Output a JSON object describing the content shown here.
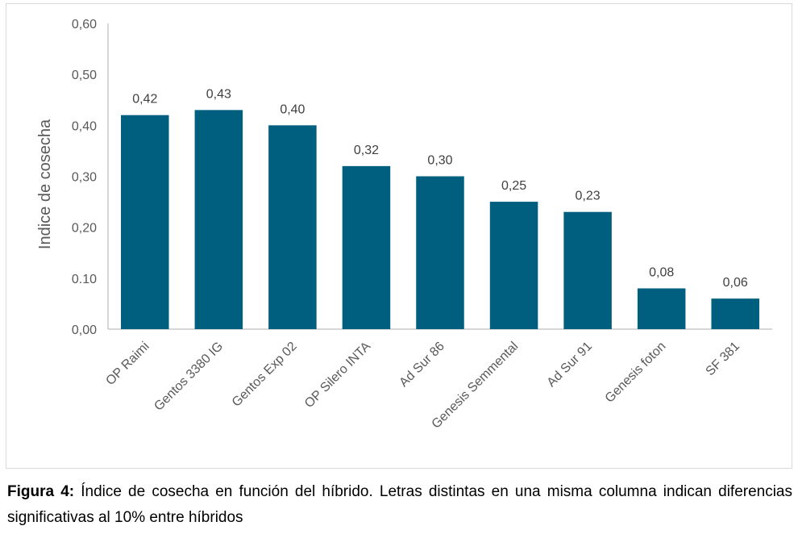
{
  "chart_data": {
    "type": "bar",
    "categories": [
      "OP Raimi",
      "Gentos 3380 IG",
      "Gentos Exp 02",
      "OP Silero INTA",
      "Ad Sur 86",
      "Genesis Semmental",
      "Ad Sur 91",
      "Genesis foton",
      "SF 381"
    ],
    "values": [
      0.42,
      0.43,
      0.4,
      0.32,
      0.3,
      0.25,
      0.23,
      0.08,
      0.06
    ],
    "data_labels": [
      "0,42",
      "0,43",
      "0,40",
      "0,32",
      "0,30",
      "0,25",
      "0,23",
      "0,08",
      "0,06"
    ],
    "y_ticks": [
      0,
      0.1,
      0.2,
      0.3,
      0.4,
      0.5,
      0.6
    ],
    "y_tick_labels": [
      "0,00",
      "0.10",
      "0,20",
      "0,30",
      "0,40",
      "0,50",
      "0,60"
    ],
    "ylim": [
      0,
      0.6
    ],
    "ylabel": "Indice de cosecha",
    "xlabel": "",
    "title": "",
    "bar_color": "#005f7f",
    "grid": false
  },
  "caption": {
    "label": "Figura 4:",
    "text": " Índice de cosecha en función del híbrido. Letras distintas en una misma columna indican diferencias significativas al 10% entre híbridos"
  }
}
